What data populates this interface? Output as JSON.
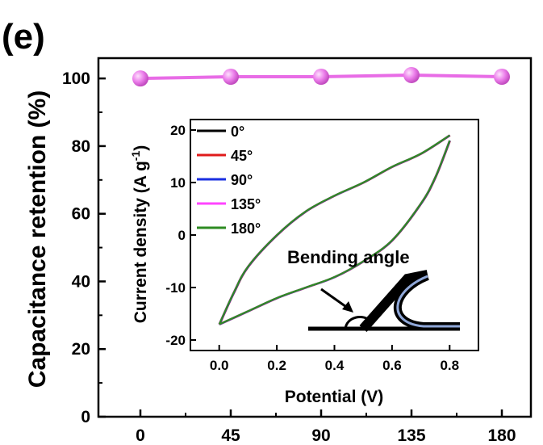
{
  "panel_label": "(e)",
  "colors": {
    "main_series": "#e86ce6",
    "inset_0": "#000000",
    "inset_45": "#e01b1b",
    "inset_90": "#1a2fe0",
    "inset_135": "#ff44ff",
    "inset_180": "#2e8b22"
  },
  "chart_data": [
    {
      "type": "line",
      "ylabel": "Capacitance retention (%)",
      "xlabel": "",
      "x": [
        0,
        45,
        90,
        135,
        180
      ],
      "xticks": [
        "0",
        "45",
        "90",
        "135",
        "180"
      ],
      "series": [
        {
          "values": [
            100,
            100.5,
            100.5,
            101,
            100.5
          ],
          "color": "#e86ce6",
          "markers": "sphere"
        }
      ],
      "ylim": [
        0,
        106
      ],
      "yticks": [
        "0",
        "20",
        "40",
        "60",
        "80",
        "100"
      ],
      "grid": false
    },
    {
      "type": "line",
      "inset": true,
      "xlabel": "Potential (V)",
      "ylabel": "Current density (A g⁻¹)",
      "ylabel_parts": [
        "Current density (A g",
        "-1",
        ")"
      ],
      "xlim": [
        -0.1,
        0.9
      ],
      "ylim": [
        -22,
        22
      ],
      "xticks": [
        "0.0",
        "0.2",
        "0.4",
        "0.6",
        "0.8"
      ],
      "yticks": [
        "-20",
        "-10",
        "0",
        "10",
        "20"
      ],
      "legend_position": "top-left",
      "annotation": "Bending angle",
      "series": [
        {
          "name": "0°",
          "color": "#000000"
        },
        {
          "name": "45°",
          "color": "#e01b1b"
        },
        {
          "name": "90°",
          "color": "#1a2fe0"
        },
        {
          "name": "135°",
          "color": "#ff44ff"
        },
        {
          "name": "180°",
          "color": "#2e8b22"
        }
      ],
      "cv_upper": {
        "x": [
          0.0,
          0.05,
          0.1,
          0.2,
          0.3,
          0.4,
          0.5,
          0.6,
          0.7,
          0.8
        ],
        "y": [
          -17,
          -11,
          -6,
          0,
          4.5,
          7.5,
          10,
          13,
          15.5,
          19
        ]
      },
      "cv_lower": {
        "x": [
          0.0,
          0.1,
          0.2,
          0.3,
          0.4,
          0.5,
          0.6,
          0.7,
          0.75,
          0.8
        ],
        "y": [
          -17,
          -14.5,
          -12,
          -10,
          -8,
          -5,
          -1,
          6,
          11,
          18
        ]
      }
    }
  ]
}
